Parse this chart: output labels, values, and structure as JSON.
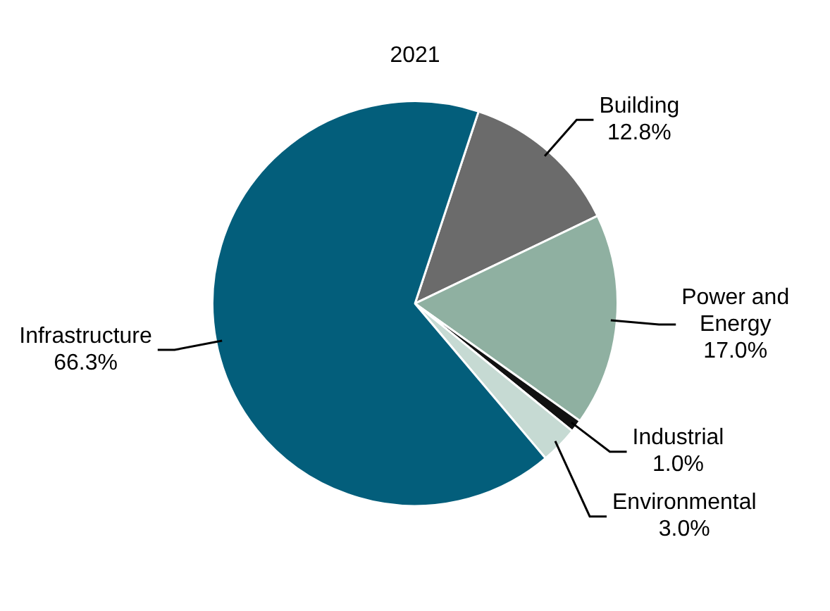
{
  "chart_data": {
    "type": "pie",
    "title": "2021",
    "categories": [
      "Building",
      "Power and Energy",
      "Industrial",
      "Environmental",
      "Infrastructure"
    ],
    "values": [
      12.8,
      17.0,
      1.0,
      3.0,
      66.3
    ],
    "value_labels": [
      "12.8%",
      "17.0%",
      "1.0%",
      "3.0%",
      "66.3%"
    ],
    "colors": [
      "#6b6b6b",
      "#8fb0a1",
      "#111111",
      "#c6dad3",
      "#035e7b"
    ],
    "legend": false
  }
}
